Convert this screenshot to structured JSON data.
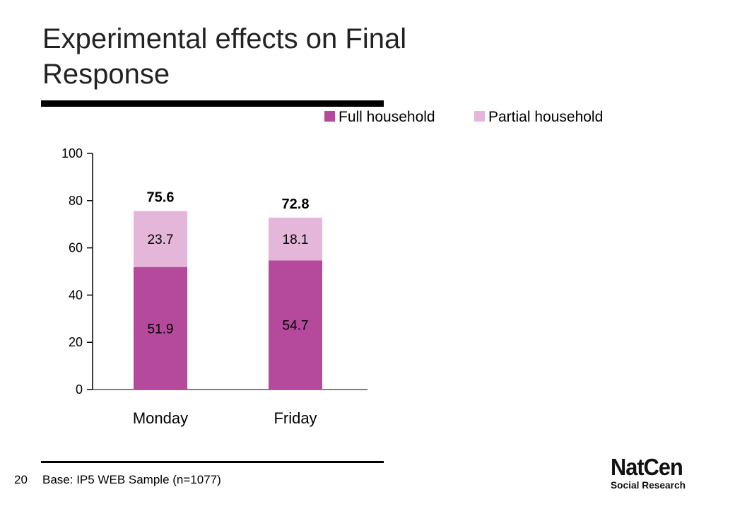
{
  "slide": {
    "title": "Experimental effects on Final Response",
    "page_number": "20",
    "base_note": "Base: IP5 WEB Sample (n=1077)",
    "logo": {
      "line1": "NatCen",
      "line2": "Social Research"
    }
  },
  "colors": {
    "full": "#b5499b",
    "partial": "#e4b6d9",
    "axis": "#000000"
  },
  "chart_data": {
    "type": "bar",
    "stacked": true,
    "categories": [
      "Monday",
      "Friday"
    ],
    "series": [
      {
        "name": "Full household",
        "values": [
          51.9,
          54.7
        ],
        "labels": [
          "51.9",
          "54.7"
        ]
      },
      {
        "name": "Partial household",
        "values": [
          23.7,
          18.1
        ],
        "labels": [
          "23.7",
          "18.1"
        ]
      }
    ],
    "totals": [
      75.6,
      72.8
    ],
    "total_labels": [
      "75.6",
      "72.8"
    ],
    "ylim": [
      0,
      100
    ],
    "yticks": [
      0,
      20,
      40,
      60,
      80,
      100
    ],
    "ytick_labels": [
      "0",
      "20",
      "40",
      "60",
      "80",
      "100"
    ],
    "grid": false,
    "legend_position": "top-right",
    "title": "",
    "xlabel": "",
    "ylabel": ""
  }
}
